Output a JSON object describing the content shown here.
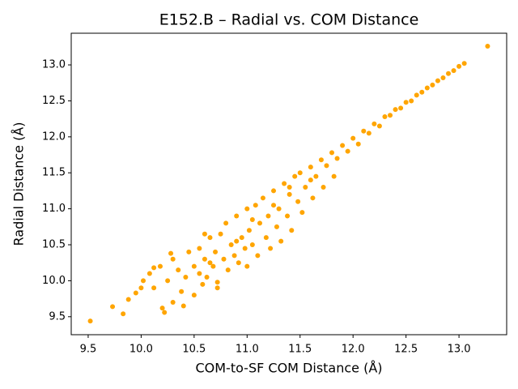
{
  "chart_data": {
    "type": "scatter",
    "title": "E152.B – Radial vs. COM Distance",
    "xlabel": "COM-to-SF COM Distance (Å)",
    "ylabel": "Radial Distance (Å)",
    "color": "#ffa500",
    "x": [
      9.52,
      9.73,
      9.83,
      9.88,
      9.95,
      10.0,
      10.02,
      10.08,
      10.12,
      10.18,
      10.2,
      10.22,
      10.25,
      10.3,
      10.3,
      10.35,
      10.38,
      10.4,
      10.42,
      10.45,
      10.5,
      10.5,
      10.55,
      10.55,
      10.58,
      10.6,
      10.62,
      10.65,
      10.68,
      10.7,
      10.72,
      10.75,
      10.78,
      10.8,
      10.82,
      10.85,
      10.88,
      10.9,
      10.92,
      10.95,
      10.98,
      11.0,
      11.0,
      11.02,
      11.05,
      11.08,
      11.1,
      11.12,
      11.15,
      11.18,
      11.2,
      11.22,
      11.25,
      11.28,
      11.3,
      11.32,
      11.35,
      11.38,
      11.4,
      11.42,
      11.45,
      11.48,
      11.5,
      11.52,
      11.55,
      11.6,
      11.62,
      11.65,
      11.7,
      11.72,
      11.75,
      11.8,
      11.82,
      11.85,
      11.9,
      11.95,
      12.0,
      12.05,
      12.1,
      12.15,
      12.2,
      12.25,
      12.3,
      12.35,
      12.4,
      12.45,
      12.5,
      12.55,
      12.6,
      12.65,
      12.7,
      12.75,
      12.8,
      12.85,
      12.9,
      12.95,
      13.0,
      13.05,
      13.27,
      10.12,
      10.6,
      10.28,
      10.72,
      10.65,
      10.9,
      11.05,
      11.25,
      11.4,
      11.6
    ],
    "values": [
      9.44,
      9.64,
      9.54,
      9.74,
      9.83,
      9.9,
      10.0,
      10.1,
      10.18,
      10.2,
      9.62,
      9.56,
      10.0,
      9.7,
      10.3,
      10.15,
      9.85,
      9.65,
      10.05,
      10.4,
      10.2,
      9.8,
      10.1,
      10.45,
      9.95,
      10.3,
      10.05,
      10.6,
      10.2,
      10.4,
      9.98,
      10.65,
      10.3,
      10.8,
      10.15,
      10.5,
      10.35,
      10.9,
      10.25,
      10.6,
      10.45,
      11.0,
      10.2,
      10.7,
      10.5,
      11.05,
      10.35,
      10.8,
      11.15,
      10.6,
      10.9,
      10.45,
      11.25,
      10.75,
      11.0,
      10.55,
      11.35,
      10.9,
      11.2,
      10.7,
      11.45,
      11.1,
      11.5,
      10.95,
      11.3,
      11.58,
      11.15,
      11.45,
      11.68,
      11.3,
      11.6,
      11.78,
      11.45,
      11.7,
      11.88,
      11.8,
      11.98,
      11.9,
      12.08,
      12.05,
      12.18,
      12.15,
      12.28,
      12.3,
      12.38,
      12.4,
      12.48,
      12.5,
      12.58,
      12.62,
      12.68,
      12.72,
      12.78,
      12.82,
      12.88,
      12.92,
      12.98,
      13.02,
      13.26,
      9.9,
      10.65,
      10.38,
      9.9,
      10.25,
      10.55,
      10.85,
      11.05,
      11.3,
      11.4
    ],
    "xlim": [
      9.34,
      13.45
    ],
    "ylim": [
      9.25,
      13.44
    ],
    "xticks": [
      9.5,
      {
        "value": 10,
        "label": "10.0"
      },
      10.5,
      {
        "value": 11,
        "label": "11.0"
      },
      11.5,
      {
        "value": 12,
        "label": "12.0"
      },
      12.5,
      {
        "value": 13,
        "label": "13.0"
      }
    ],
    "yticks": [
      9.5,
      {
        "value": 10,
        "label": "10.0"
      },
      10.5,
      {
        "value": 11,
        "label": "11.0"
      },
      11.5,
      {
        "value": 12,
        "label": "12.0"
      },
      12.5,
      {
        "value": 13,
        "label": "13.0"
      }
    ]
  }
}
